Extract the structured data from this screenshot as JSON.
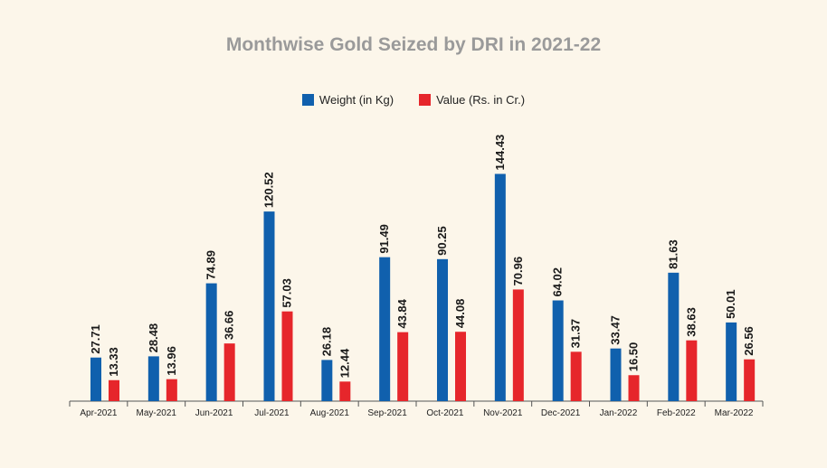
{
  "colors": {
    "weight": "#1060ad",
    "value": "#e6262b",
    "axis": "#555555",
    "title": "#9a9a9a",
    "background": "#fcf6ea"
  },
  "chart_data": {
    "type": "bar",
    "title": "Monthwise Gold Seized by DRI in 2021-22",
    "xlabel": "",
    "ylabel": "",
    "ylim": [
      0,
      150
    ],
    "grid": false,
    "legend_position": "top",
    "categories": [
      "Apr-2021",
      "May-2021",
      "Jun-2021",
      "Jul-2021",
      "Aug-2021",
      "Sep-2021",
      "Oct-2021",
      "Nov-2021",
      "Dec-2021",
      "Jan-2022",
      "Feb-2022",
      "Mar-2022"
    ],
    "series": [
      {
        "name": "Weight (in Kg)",
        "values": [
          27.71,
          28.48,
          74.89,
          120.52,
          26.18,
          91.49,
          90.25,
          144.43,
          64.02,
          33.47,
          81.63,
          50.01
        ],
        "labels": [
          "27.71",
          "28.48",
          "74.89",
          "120.52",
          "26.18",
          "91.49",
          "90.25",
          "144.43",
          "64.02",
          "33.47",
          "81.63",
          "50.01"
        ]
      },
      {
        "name": "Value (Rs. in Cr.)",
        "values": [
          13.33,
          13.96,
          36.66,
          57.03,
          12.44,
          43.84,
          44.08,
          70.96,
          31.37,
          16.5,
          38.63,
          26.56
        ],
        "labels": [
          "13.33",
          "13.96",
          "36.66",
          "57.03",
          "12.44",
          "43.84",
          "44.08",
          "70.96",
          "31.37",
          "16.50",
          "38.63",
          "26.56"
        ]
      }
    ]
  }
}
